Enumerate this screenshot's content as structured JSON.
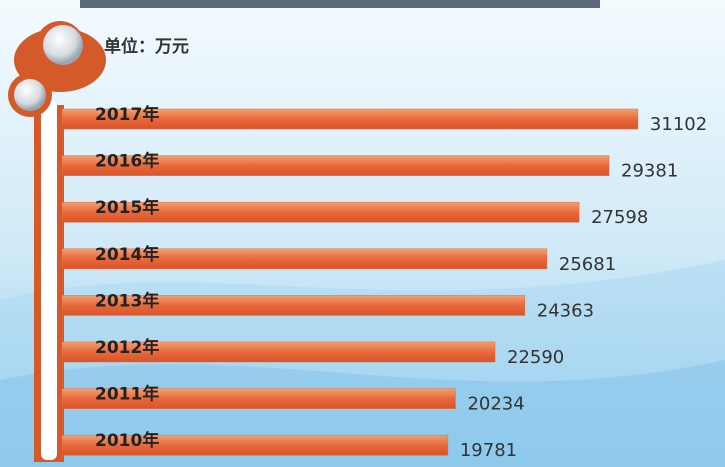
{
  "chart_data": {
    "type": "barh",
    "unit_label": "单位：万元",
    "categories": [
      "2017年",
      "2016年",
      "2015年",
      "2014年",
      "2013年",
      "2012年",
      "2011年",
      "2010年"
    ],
    "values": [
      31102,
      29381,
      27598,
      25681,
      24363,
      22590,
      20234,
      19781
    ],
    "color": "#e8693b",
    "xlim": [
      -3200,
      32000
    ]
  }
}
